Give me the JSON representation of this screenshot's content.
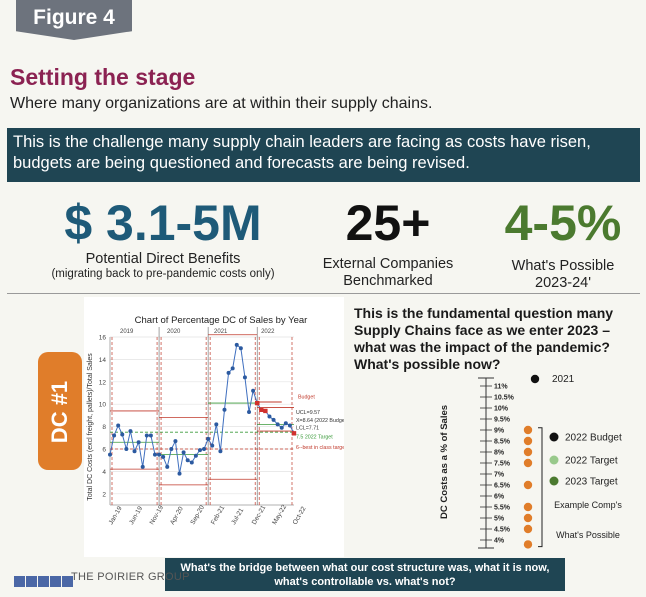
{
  "figure_label": "Figure 4",
  "title": "Setting the stage",
  "subtitle": "Where many organizations are at within their supply chains.",
  "banner": "This is the challenge many supply chain leaders are facing as costs have risen, budgets are being questioned and forecasts are being revised.",
  "stats": [
    {
      "value": "$ 3.1-5M",
      "label": "Potential Direct Benefits",
      "sub": "(migrating back to pre-pandemic costs only)",
      "color": "#1e5a78"
    },
    {
      "value": "25+",
      "label": "External Companies",
      "label2": "Benchmarked",
      "color": "#111111"
    },
    {
      "value": "4-5%",
      "label": "What's Possible",
      "label2": "2023-24'",
      "color": "#4b7a2f"
    }
  ],
  "dc_tab": "DC #1",
  "question": "This is the fundamental question many Supply Chains face as we enter 2023 – what was the impact of the pandemic? What's possible now?",
  "bridge": {
    "line1": "What's the bridge between what our cost structure was, what it is now,",
    "line2": "what's controllable vs. what's not?"
  },
  "logo": "THE POIRIER GROUP",
  "chart_data": [
    {
      "type": "line",
      "title": "Chart of Percentage DC of Sales by Year",
      "ylabel": "Total DC Costs (excl freight, pallets)/Total Sales",
      "ylim": [
        1,
        16
      ],
      "yticks": [
        "2",
        "4",
        "6",
        "8",
        "10",
        "12",
        "14",
        "16"
      ],
      "year_labels": [
        "2019",
        "2020",
        "2021",
        "2022"
      ],
      "xticks": [
        "Jan-19",
        "Jun-19",
        "Nov-19",
        "Apr-20",
        "Sep-20",
        "Feb-21",
        "Jul-21",
        "Dec-21",
        "May-22",
        "Oct-22"
      ],
      "x": [
        0,
        1,
        2,
        3,
        4,
        5,
        6,
        7,
        8,
        9,
        10,
        11,
        12,
        13,
        14,
        15,
        16,
        17,
        18,
        19,
        20,
        21,
        22,
        23,
        24,
        25,
        26,
        27,
        28,
        29,
        30,
        31,
        32,
        33,
        34,
        35,
        36,
        37,
        38,
        39,
        40,
        41,
        42,
        43,
        44,
        45
      ],
      "values": [
        5.5,
        7.2,
        8.1,
        7.3,
        6.0,
        7.6,
        5.8,
        6.6,
        4.4,
        7.2,
        7.2,
        5.5,
        5.5,
        5.3,
        4.4,
        6.0,
        6.7,
        3.8,
        5.7,
        5.0,
        4.8,
        5.4,
        5.9,
        6.0,
        6.9,
        6.3,
        8.2,
        5.8,
        9.5,
        12.8,
        13.2,
        15.3,
        15.0,
        12.4,
        9.3,
        11.2,
        10.1,
        9.5,
        9.4,
        8.9,
        8.6,
        8.2,
        7.9,
        8.3,
        8.1,
        7.4
      ],
      "annotations": [
        "Budget",
        "UCL=9.57",
        "X=8.64 (2022 Budget)",
        "LCL=7.71",
        "7.5 2022 Target",
        "6--best in class target"
      ]
    },
    {
      "type": "scatter",
      "ylabel": "DC Costs as a % of Sales",
      "yticks": [
        "11%",
        "10.5%",
        "10%",
        "9.5%",
        "9%",
        "8.5%",
        "8%",
        "7.5%",
        "7%",
        "6.5%",
        "6%",
        "5.5%",
        "5%",
        "4.5%",
        "4%"
      ],
      "points": [
        {
          "label": "2021",
          "value": 11.8,
          "color": "#111111"
        },
        {
          "label": "2022 Budget",
          "value": 8.6,
          "color": "#111111"
        },
        {
          "label": "2022 Target",
          "value": 7.5,
          "color": "#98c98b"
        },
        {
          "label": "2023 Target",
          "value": 6.8,
          "color": "#4b7a2f"
        },
        {
          "label": "",
          "value": 9.0,
          "color": "#e07d2a"
        },
        {
          "label": "",
          "value": 8.5,
          "color": "#e07d2a"
        },
        {
          "label": "",
          "value": 8.0,
          "color": "#e07d2a"
        },
        {
          "label": "",
          "value": 7.5,
          "color": "#e07d2a"
        },
        {
          "label": "",
          "value": 6.5,
          "color": "#e07d2a"
        },
        {
          "label": "",
          "value": 5.5,
          "color": "#e07d2a"
        },
        {
          "label": "",
          "value": 5.0,
          "color": "#e07d2a"
        },
        {
          "label": "",
          "value": 4.5,
          "color": "#e07d2a"
        },
        {
          "label": "",
          "value": 3.8,
          "color": "#e07d2a"
        }
      ],
      "bracket_label": "Example Comp's",
      "bracket_label2": "What's Possible"
    }
  ]
}
